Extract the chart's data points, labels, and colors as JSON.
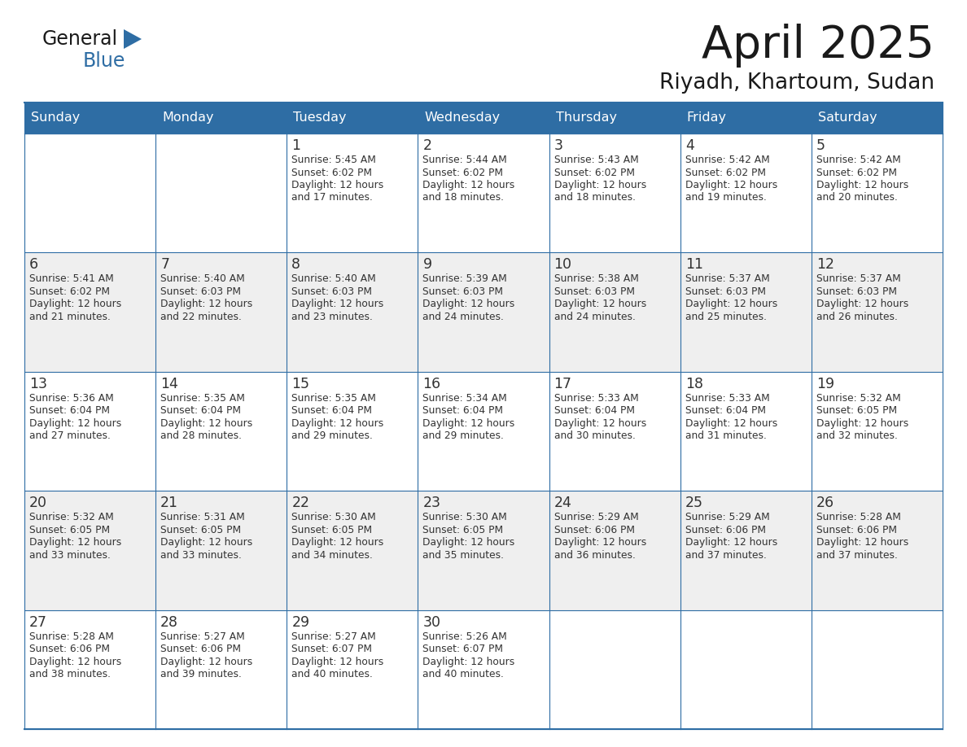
{
  "title": "April 2025",
  "subtitle": "Riyadh, Khartoum, Sudan",
  "days_of_week": [
    "Sunday",
    "Monday",
    "Tuesday",
    "Wednesday",
    "Thursday",
    "Friday",
    "Saturday"
  ],
  "header_bg": "#2E6DA4",
  "header_text": "#FFFFFF",
  "cell_bg_light": "#EFEFEF",
  "cell_bg_white": "#FFFFFF",
  "border_color": "#2E6DA4",
  "border_light": "#BBBBBB",
  "text_color": "#333333",
  "title_color": "#1a1a1a",
  "logo_general_color": "#1a1a1a",
  "logo_blue_color": "#2E6DA4",
  "calendar_data": [
    [
      {
        "day": null,
        "sunrise": null,
        "sunset": null,
        "daylight_min": null
      },
      {
        "day": null,
        "sunrise": null,
        "sunset": null,
        "daylight_min": null
      },
      {
        "day": 1,
        "sunrise": "5:45 AM",
        "sunset": "6:02 PM",
        "daylight_min": "17 minutes."
      },
      {
        "day": 2,
        "sunrise": "5:44 AM",
        "sunset": "6:02 PM",
        "daylight_min": "18 minutes."
      },
      {
        "day": 3,
        "sunrise": "5:43 AM",
        "sunset": "6:02 PM",
        "daylight_min": "18 minutes."
      },
      {
        "day": 4,
        "sunrise": "5:42 AM",
        "sunset": "6:02 PM",
        "daylight_min": "19 minutes."
      },
      {
        "day": 5,
        "sunrise": "5:42 AM",
        "sunset": "6:02 PM",
        "daylight_min": "20 minutes."
      }
    ],
    [
      {
        "day": 6,
        "sunrise": "5:41 AM",
        "sunset": "6:02 PM",
        "daylight_min": "21 minutes."
      },
      {
        "day": 7,
        "sunrise": "5:40 AM",
        "sunset": "6:03 PM",
        "daylight_min": "22 minutes."
      },
      {
        "day": 8,
        "sunrise": "5:40 AM",
        "sunset": "6:03 PM",
        "daylight_min": "23 minutes."
      },
      {
        "day": 9,
        "sunrise": "5:39 AM",
        "sunset": "6:03 PM",
        "daylight_min": "24 minutes."
      },
      {
        "day": 10,
        "sunrise": "5:38 AM",
        "sunset": "6:03 PM",
        "daylight_min": "24 minutes."
      },
      {
        "day": 11,
        "sunrise": "5:37 AM",
        "sunset": "6:03 PM",
        "daylight_min": "25 minutes."
      },
      {
        "day": 12,
        "sunrise": "5:37 AM",
        "sunset": "6:03 PM",
        "daylight_min": "26 minutes."
      }
    ],
    [
      {
        "day": 13,
        "sunrise": "5:36 AM",
        "sunset": "6:04 PM",
        "daylight_min": "27 minutes."
      },
      {
        "day": 14,
        "sunrise": "5:35 AM",
        "sunset": "6:04 PM",
        "daylight_min": "28 minutes."
      },
      {
        "day": 15,
        "sunrise": "5:35 AM",
        "sunset": "6:04 PM",
        "daylight_min": "29 minutes."
      },
      {
        "day": 16,
        "sunrise": "5:34 AM",
        "sunset": "6:04 PM",
        "daylight_min": "29 minutes."
      },
      {
        "day": 17,
        "sunrise": "5:33 AM",
        "sunset": "6:04 PM",
        "daylight_min": "30 minutes."
      },
      {
        "day": 18,
        "sunrise": "5:33 AM",
        "sunset": "6:04 PM",
        "daylight_min": "31 minutes."
      },
      {
        "day": 19,
        "sunrise": "5:32 AM",
        "sunset": "6:05 PM",
        "daylight_min": "32 minutes."
      }
    ],
    [
      {
        "day": 20,
        "sunrise": "5:32 AM",
        "sunset": "6:05 PM",
        "daylight_min": "33 minutes."
      },
      {
        "day": 21,
        "sunrise": "5:31 AM",
        "sunset": "6:05 PM",
        "daylight_min": "33 minutes."
      },
      {
        "day": 22,
        "sunrise": "5:30 AM",
        "sunset": "6:05 PM",
        "daylight_min": "34 minutes."
      },
      {
        "day": 23,
        "sunrise": "5:30 AM",
        "sunset": "6:05 PM",
        "daylight_min": "35 minutes."
      },
      {
        "day": 24,
        "sunrise": "5:29 AM",
        "sunset": "6:06 PM",
        "daylight_min": "36 minutes."
      },
      {
        "day": 25,
        "sunrise": "5:29 AM",
        "sunset": "6:06 PM",
        "daylight_min": "37 minutes."
      },
      {
        "day": 26,
        "sunrise": "5:28 AM",
        "sunset": "6:06 PM",
        "daylight_min": "37 minutes."
      }
    ],
    [
      {
        "day": 27,
        "sunrise": "5:28 AM",
        "sunset": "6:06 PM",
        "daylight_min": "38 minutes."
      },
      {
        "day": 28,
        "sunrise": "5:27 AM",
        "sunset": "6:06 PM",
        "daylight_min": "39 minutes."
      },
      {
        "day": 29,
        "sunrise": "5:27 AM",
        "sunset": "6:07 PM",
        "daylight_min": "40 minutes."
      },
      {
        "day": 30,
        "sunrise": "5:26 AM",
        "sunset": "6:07 PM",
        "daylight_min": "40 minutes."
      },
      {
        "day": null,
        "sunrise": null,
        "sunset": null,
        "daylight_min": null
      },
      {
        "day": null,
        "sunrise": null,
        "sunset": null,
        "daylight_min": null
      },
      {
        "day": null,
        "sunrise": null,
        "sunset": null,
        "daylight_min": null
      }
    ]
  ]
}
